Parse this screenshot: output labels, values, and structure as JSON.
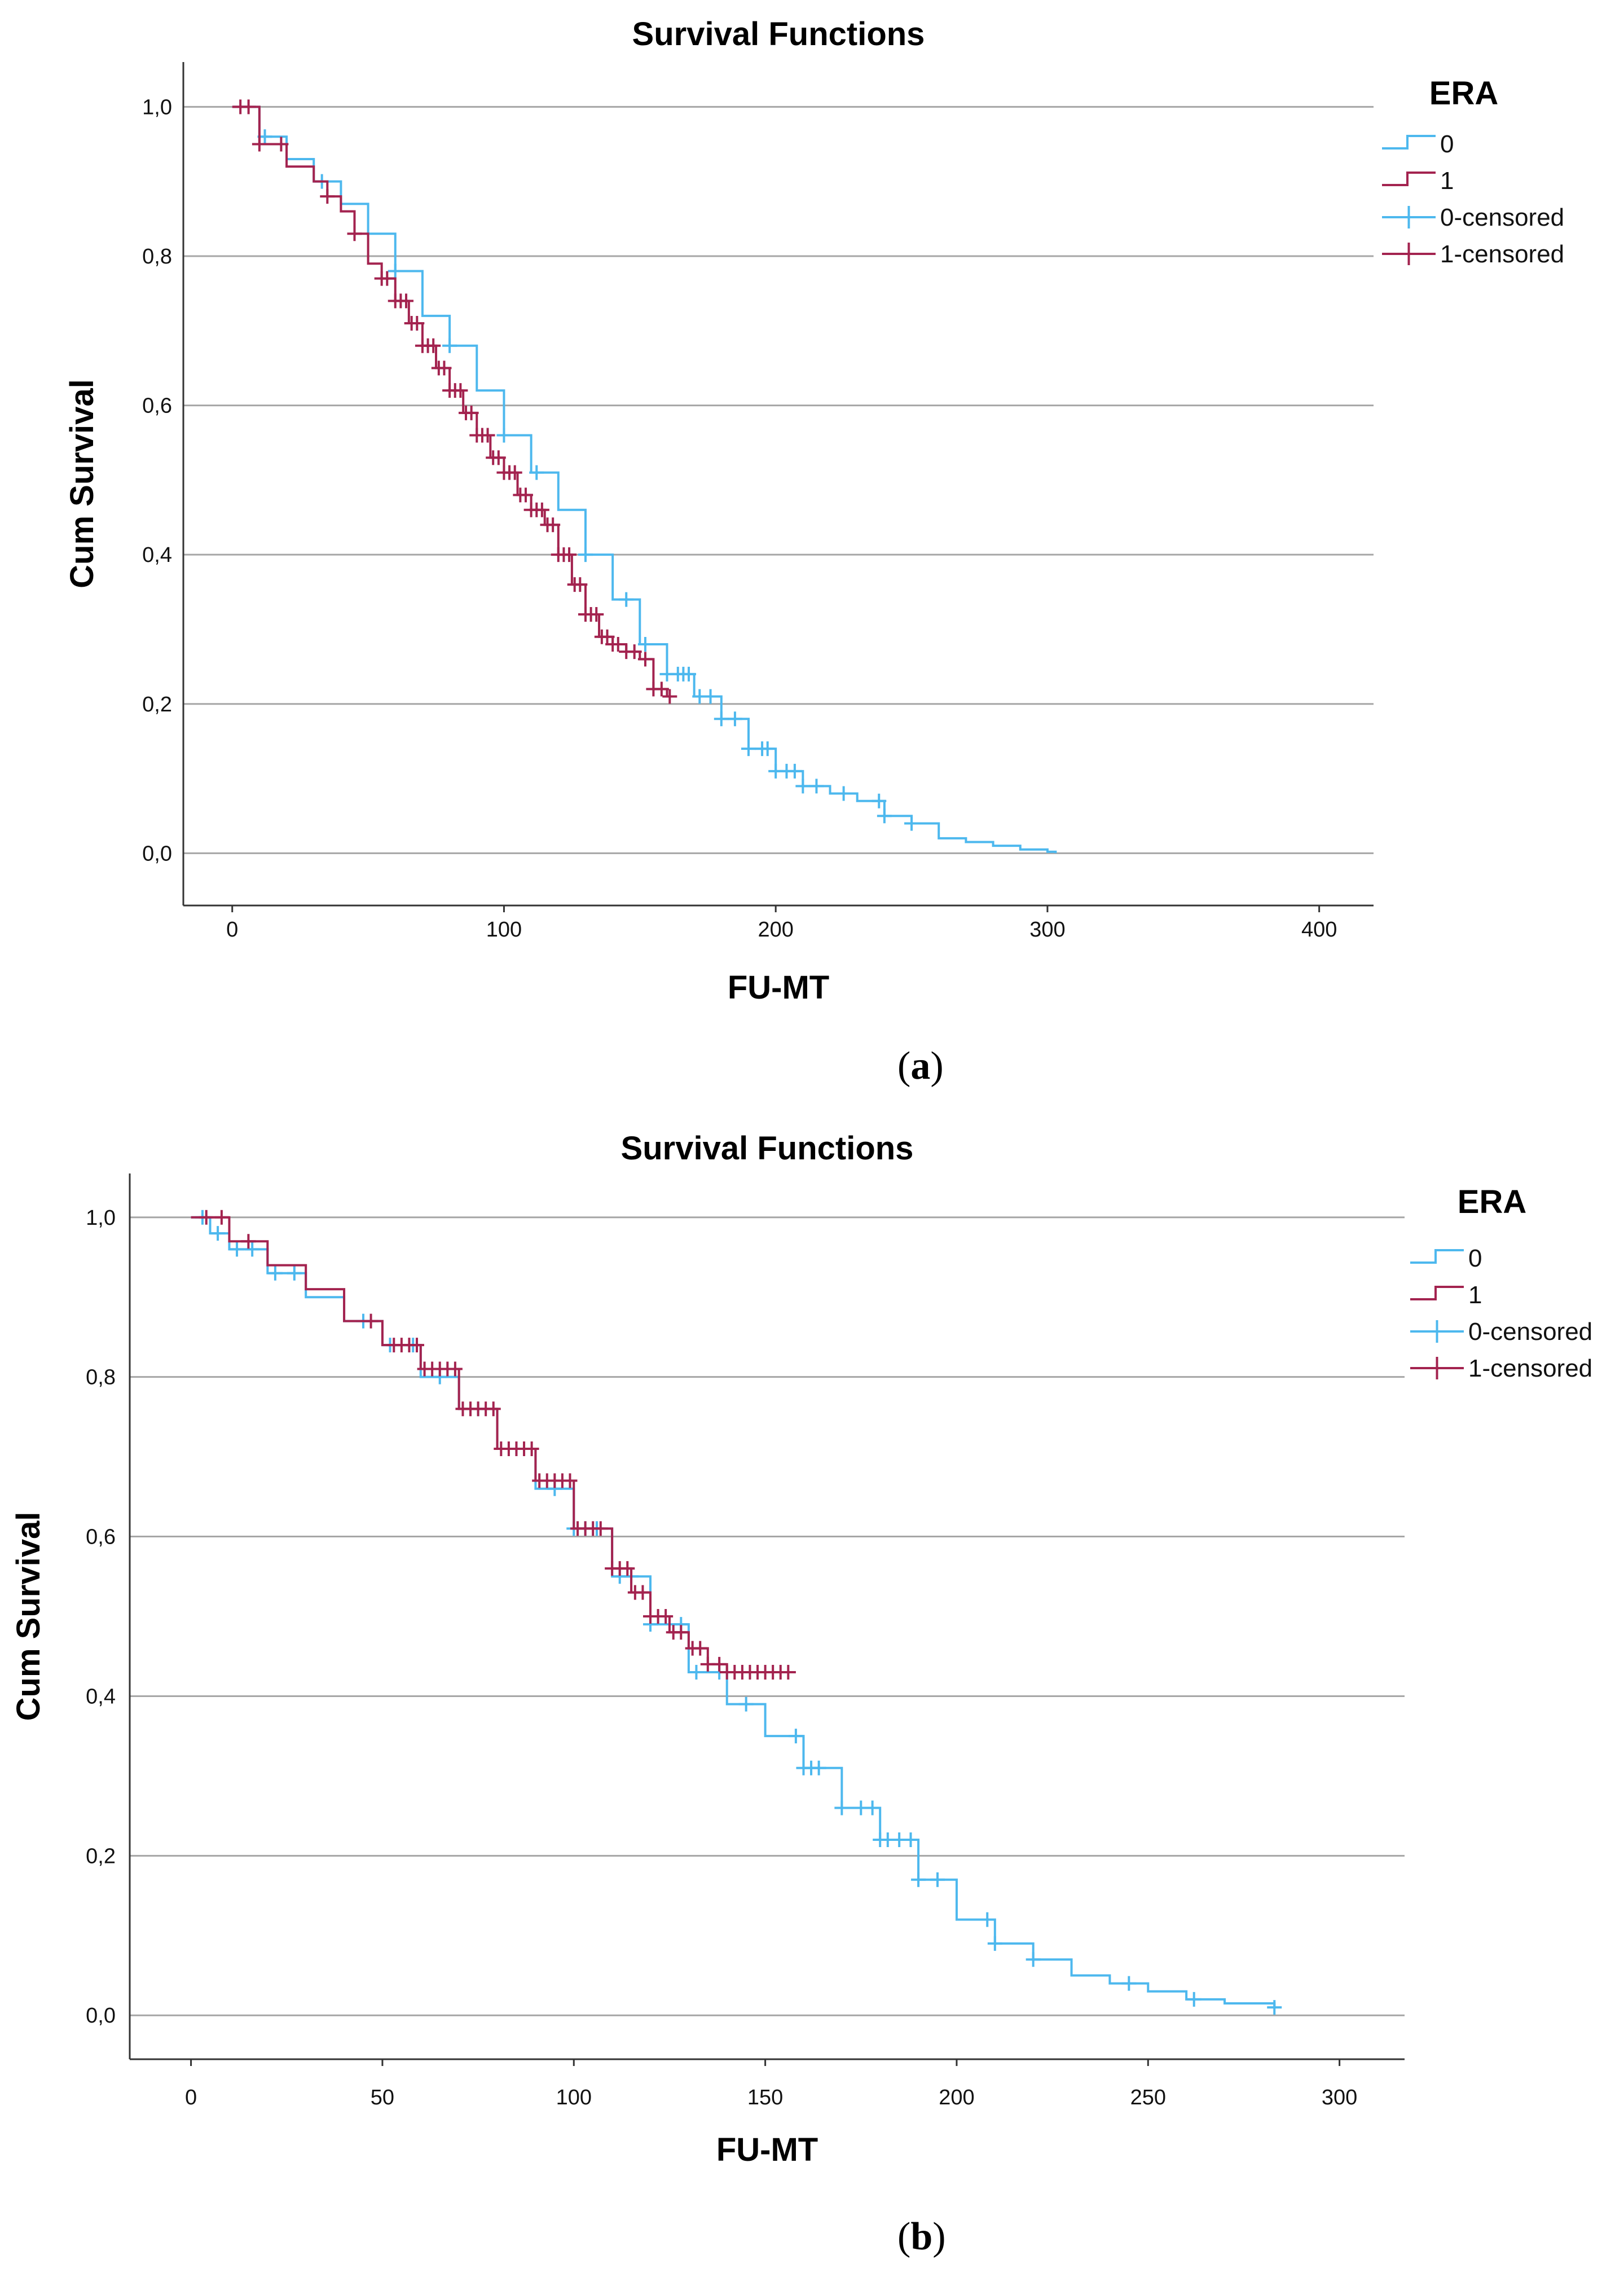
{
  "chart_data": [
    {
      "panel": "a",
      "caption": "a",
      "type": "line",
      "title": "Survival Functions",
      "xlabel": "FU-MT",
      "ylabel": "Cum Survival",
      "xlim": [
        -18,
        420
      ],
      "ylim": [
        -0.07,
        1.06
      ],
      "xticks": [
        0,
        100,
        200,
        300,
        400
      ],
      "xtick_labels": [
        "0",
        "100",
        "200",
        "300",
        "400"
      ],
      "yticks": [
        0.0,
        0.2,
        0.4,
        0.6,
        0.8,
        1.0
      ],
      "ytick_labels": [
        "0,0",
        "0,2",
        "0,4",
        "0,6",
        "0,8",
        "1,0"
      ],
      "grid": "horizontal",
      "legend": {
        "title": "ERA",
        "position": "top-right",
        "entries": [
          "0",
          "1",
          "0-censored",
          "1-censored"
        ]
      },
      "colors": {
        "0": "#4db8ee",
        "1": "#a3234f",
        "grid": "#a6a6a6",
        "axis": "#333333"
      },
      "series": [
        {
          "name": "0",
          "x": [
            0,
            10,
            20,
            30,
            40,
            50,
            60,
            70,
            80,
            90,
            100,
            110,
            120,
            130,
            140,
            150,
            160,
            170,
            180,
            190,
            200,
            210,
            220,
            230,
            240,
            250,
            260,
            270,
            280,
            290,
            300,
            303
          ],
          "y": [
            1.0,
            0.96,
            0.93,
            0.9,
            0.87,
            0.83,
            0.78,
            0.72,
            0.68,
            0.62,
            0.56,
            0.51,
            0.46,
            0.4,
            0.34,
            0.28,
            0.24,
            0.21,
            0.18,
            0.14,
            0.11,
            0.09,
            0.08,
            0.07,
            0.05,
            0.04,
            0.02,
            0.015,
            0.01,
            0.005,
            0.002,
            0.0
          ],
          "censored_x": [
            12,
            33,
            60,
            80,
            100,
            112,
            130,
            145,
            152,
            160,
            164,
            166,
            168,
            172,
            176,
            180,
            185,
            190,
            195,
            197,
            200,
            204,
            207,
            210,
            215,
            225,
            238,
            240,
            250
          ]
        },
        {
          "name": "1",
          "x": [
            0,
            10,
            20,
            30,
            35,
            40,
            45,
            50,
            55,
            60,
            65,
            70,
            75,
            80,
            85,
            90,
            95,
            100,
            105,
            110,
            115,
            120,
            125,
            130,
            135,
            140,
            145,
            150,
            155,
            160,
            162
          ],
          "y": [
            1.0,
            0.95,
            0.92,
            0.9,
            0.88,
            0.86,
            0.83,
            0.79,
            0.77,
            0.74,
            0.71,
            0.68,
            0.65,
            0.62,
            0.59,
            0.56,
            0.53,
            0.51,
            0.48,
            0.46,
            0.44,
            0.4,
            0.36,
            0.32,
            0.29,
            0.28,
            0.27,
            0.26,
            0.22,
            0.21,
            0.21
          ],
          "censored_x": [
            3,
            6,
            10,
            18,
            35,
            45,
            55,
            57,
            60,
            62,
            64,
            66,
            68,
            70,
            72,
            74,
            76,
            78,
            80,
            82,
            84,
            86,
            88,
            90,
            92,
            94,
            96,
            98,
            100,
            102,
            104,
            106,
            108,
            110,
            112,
            114,
            116,
            118,
            120,
            122,
            124,
            126,
            128,
            130,
            132,
            134,
            136,
            138,
            140,
            142,
            145,
            148,
            152,
            155,
            158,
            161
          ]
        }
      ]
    },
    {
      "panel": "b",
      "caption": "b",
      "type": "line",
      "title": "Survival Functions",
      "xlabel": "FU-MT",
      "ylabel": "Cum Survival",
      "xlim": [
        -16,
        317
      ],
      "ylim": [
        -0.055,
        1.055
      ],
      "xticks": [
        0,
        50,
        100,
        150,
        200,
        250,
        300
      ],
      "xtick_labels": [
        "0",
        "50",
        "100",
        "150",
        "200",
        "250",
        "300"
      ],
      "yticks": [
        0.0,
        0.2,
        0.4,
        0.6,
        0.8,
        1.0
      ],
      "ytick_labels": [
        "0,0",
        "0,2",
        "0,4",
        "0,6",
        "0,8",
        "1,0"
      ],
      "grid": "horizontal",
      "legend": {
        "title": "ERA",
        "position": "top-right",
        "entries": [
          "0",
          "1",
          "0-censored",
          "1-censored"
        ]
      },
      "colors": {
        "0": "#4db8ee",
        "1": "#a3234f",
        "grid": "#a6a6a6",
        "axis": "#333333"
      },
      "series": [
        {
          "name": "0",
          "x": [
            0,
            5,
            10,
            20,
            30,
            40,
            50,
            60,
            70,
            80,
            90,
            100,
            110,
            120,
            130,
            140,
            150,
            160,
            170,
            180,
            190,
            200,
            210,
            220,
            230,
            240,
            250,
            260,
            270,
            283
          ],
          "y": [
            1.0,
            0.98,
            0.96,
            0.93,
            0.9,
            0.87,
            0.84,
            0.8,
            0.76,
            0.71,
            0.66,
            0.61,
            0.55,
            0.49,
            0.43,
            0.39,
            0.35,
            0.31,
            0.26,
            0.22,
            0.17,
            0.12,
            0.09,
            0.07,
            0.05,
            0.04,
            0.03,
            0.02,
            0.015,
            0.01
          ],
          "censored_x": [
            3,
            7,
            12,
            16,
            22,
            27,
            45,
            52,
            58,
            65,
            75,
            85,
            95,
            100,
            103,
            106,
            112,
            115,
            120,
            128,
            132,
            138,
            145,
            158,
            160,
            162,
            164,
            170,
            175,
            178,
            180,
            182,
            185,
            188,
            190,
            195,
            208,
            210,
            220,
            245,
            262,
            283
          ]
        },
        {
          "name": "1",
          "x": [
            0,
            10,
            20,
            30,
            40,
            50,
            60,
            70,
            80,
            90,
            100,
            110,
            115,
            120,
            125,
            130,
            135,
            140,
            145,
            150,
            155,
            158
          ],
          "y": [
            1.0,
            0.97,
            0.94,
            0.91,
            0.87,
            0.84,
            0.81,
            0.76,
            0.71,
            0.67,
            0.61,
            0.56,
            0.53,
            0.5,
            0.48,
            0.46,
            0.44,
            0.43,
            0.43,
            0.43,
            0.43,
            0.43
          ],
          "censored_x": [
            4,
            8,
            15,
            47,
            53,
            55,
            57,
            59,
            61,
            63,
            65,
            67,
            69,
            71,
            73,
            75,
            77,
            79,
            81,
            83,
            85,
            87,
            89,
            91,
            93,
            95,
            97,
            99,
            101,
            103,
            105,
            107,
            110,
            112,
            114,
            116,
            118,
            120,
            122,
            124,
            126,
            128,
            131,
            133,
            135,
            138,
            140,
            142,
            144,
            146,
            148,
            150,
            152,
            154,
            156
          ]
        }
      ]
    }
  ]
}
